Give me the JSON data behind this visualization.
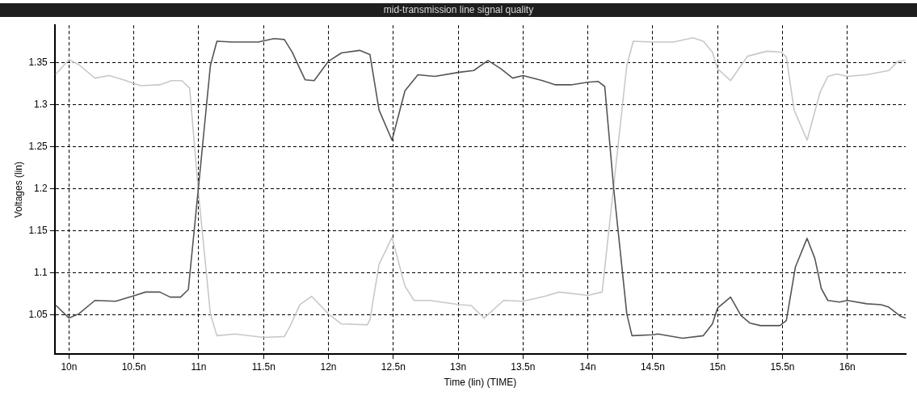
{
  "chart_data": {
    "type": "line",
    "title": "mid-transmission line signal quality",
    "xlabel": "Time (lin) (TIME)",
    "ylabel": "Voltages (lin)",
    "xlim": [
      9.89,
      16.45
    ],
    "ylim": [
      1.003,
      1.395
    ],
    "xticks": [
      {
        "value": 10,
        "label": "10n"
      },
      {
        "value": 10.5,
        "label": "10.5n"
      },
      {
        "value": 11,
        "label": "11n"
      },
      {
        "value": 11.5,
        "label": "11.5n"
      },
      {
        "value": 12,
        "label": "12n"
      },
      {
        "value": 12.5,
        "label": "12.5n"
      },
      {
        "value": 13,
        "label": "13n"
      },
      {
        "value": 13.5,
        "label": "13.5n"
      },
      {
        "value": 14,
        "label": "14n"
      },
      {
        "value": 14.5,
        "label": "14.5n"
      },
      {
        "value": 15,
        "label": "15n"
      },
      {
        "value": 15.5,
        "label": "15.5n"
      },
      {
        "value": 16,
        "label": "16n"
      }
    ],
    "yticks": [
      1.05,
      1.1,
      1.15,
      1.2,
      1.25,
      1.3,
      1.35
    ],
    "grid": true,
    "legend": false,
    "marker": "none",
    "line_style": "solid",
    "series": [
      {
        "color": "#555555",
        "x": [
          9.9,
          10.0,
          10.075,
          10.2,
          10.36,
          10.51,
          10.59,
          10.7,
          10.78,
          10.86,
          10.92,
          11.0,
          11.09,
          11.14,
          11.26,
          11.46,
          11.58,
          11.66,
          11.72,
          11.78,
          11.82,
          11.89,
          12.0,
          12.1,
          12.24,
          12.32,
          12.39,
          12.49,
          12.59,
          12.69,
          12.82,
          13.01,
          13.12,
          13.23,
          13.33,
          13.42,
          13.5,
          13.65,
          13.75,
          13.87,
          14.0,
          14.08,
          14.13,
          14.2,
          14.3,
          14.34,
          14.5,
          14.54,
          14.73,
          14.89,
          14.96,
          15.0,
          15.1,
          15.18,
          15.25,
          15.33,
          15.48,
          15.53,
          15.6,
          15.69,
          15.75,
          15.8,
          15.85,
          15.94,
          16.0,
          16.15,
          16.26,
          16.32,
          16.41,
          16.45
        ],
        "values": [
          1.061,
          1.046,
          1.051,
          1.067,
          1.066,
          1.073,
          1.077,
          1.077,
          1.071,
          1.071,
          1.08,
          1.205,
          1.347,
          1.376,
          1.375,
          1.375,
          1.379,
          1.378,
          1.363,
          1.343,
          1.33,
          1.329,
          1.352,
          1.362,
          1.365,
          1.36,
          1.294,
          1.258,
          1.317,
          1.336,
          1.334,
          1.339,
          1.341,
          1.353,
          1.343,
          1.332,
          1.335,
          1.329,
          1.324,
          1.324,
          1.327,
          1.328,
          1.322,
          1.199,
          1.051,
          1.025,
          1.026,
          1.027,
          1.022,
          1.025,
          1.039,
          1.058,
          1.071,
          1.049,
          1.04,
          1.037,
          1.037,
          1.043,
          1.107,
          1.141,
          1.117,
          1.081,
          1.067,
          1.065,
          1.067,
          1.063,
          1.062,
          1.059,
          1.048,
          1.046
        ]
      },
      {
        "color": "#c8c8c8",
        "x": [
          9.9,
          10.0,
          10.075,
          10.2,
          10.31,
          10.42,
          10.55,
          10.7,
          10.79,
          10.87,
          10.93,
          11.0,
          11.09,
          11.14,
          11.28,
          11.5,
          11.66,
          11.7,
          11.78,
          11.87,
          12.0,
          12.1,
          12.3,
          12.32,
          12.39,
          12.49,
          12.59,
          12.66,
          12.78,
          13.01,
          13.1,
          13.2,
          13.35,
          13.5,
          13.67,
          13.78,
          14.0,
          14.11,
          14.2,
          14.3,
          14.35,
          14.5,
          14.66,
          14.81,
          14.89,
          14.96,
          15.0,
          15.1,
          15.15,
          15.23,
          15.38,
          15.49,
          15.53,
          15.59,
          15.69,
          15.79,
          15.85,
          15.92,
          16.0,
          16.15,
          16.32,
          16.39,
          16.45
        ],
        "values": [
          1.337,
          1.354,
          1.348,
          1.332,
          1.335,
          1.33,
          1.323,
          1.324,
          1.329,
          1.329,
          1.32,
          1.192,
          1.051,
          1.025,
          1.027,
          1.023,
          1.024,
          1.035,
          1.062,
          1.072,
          1.051,
          1.039,
          1.038,
          1.044,
          1.11,
          1.142,
          1.084,
          1.067,
          1.067,
          1.062,
          1.061,
          1.046,
          1.067,
          1.066,
          1.072,
          1.077,
          1.073,
          1.077,
          1.205,
          1.347,
          1.376,
          1.375,
          1.375,
          1.38,
          1.376,
          1.363,
          1.343,
          1.329,
          1.34,
          1.358,
          1.364,
          1.363,
          1.357,
          1.294,
          1.258,
          1.315,
          1.334,
          1.337,
          1.334,
          1.336,
          1.341,
          1.352,
          1.353
        ]
      }
    ]
  }
}
